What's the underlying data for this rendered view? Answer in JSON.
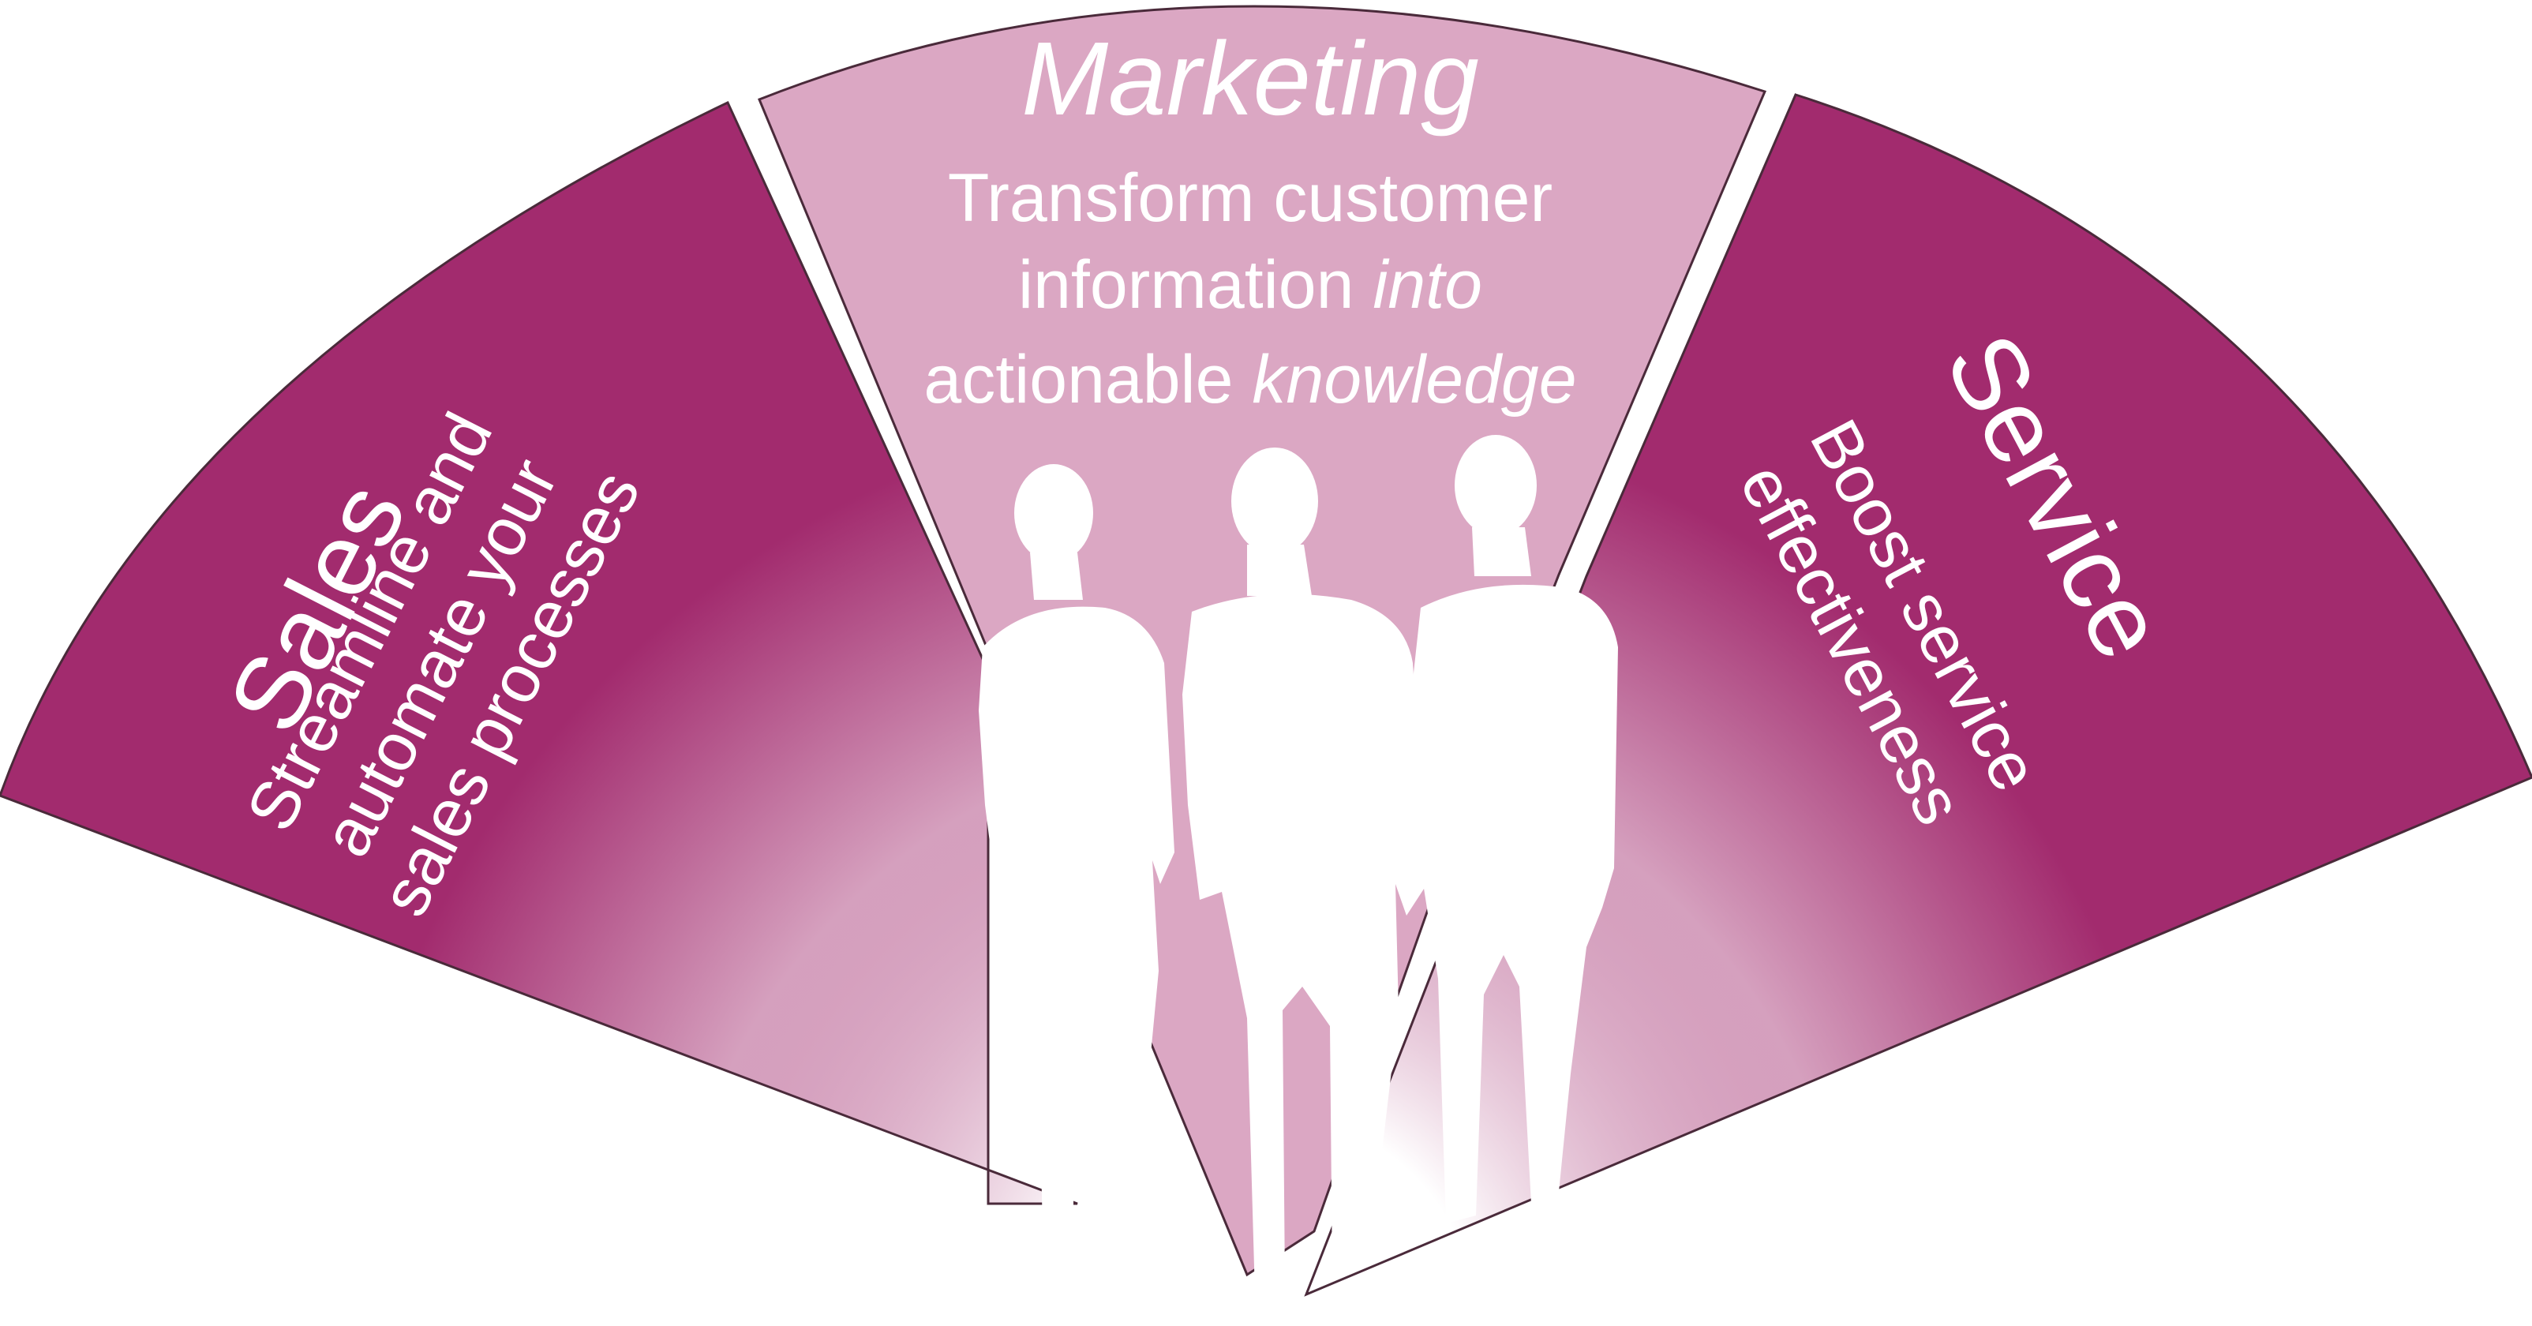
{
  "colors": {
    "magenta": "#a22b6e",
    "marketing_fill": "#dba7c3",
    "glow": "#ffffff",
    "outline": "#4a2a3a",
    "silhouette": "#ffffff"
  },
  "segments": {
    "sales": {
      "title": "Sales",
      "lines": [
        "Streamline and",
        "automate your",
        "sales processes"
      ]
    },
    "marketing": {
      "title": "Marketing",
      "line1": "Transform customer",
      "line2_normal": "information ",
      "line2_italic": "into",
      "line3_normal": "actionable ",
      "line3_italic": "knowledge"
    },
    "service": {
      "title": "Service",
      "lines": [
        "Boost service",
        "effectiveness"
      ]
    }
  },
  "icons": {
    "people": "three-business-people-silhouette-icon"
  }
}
